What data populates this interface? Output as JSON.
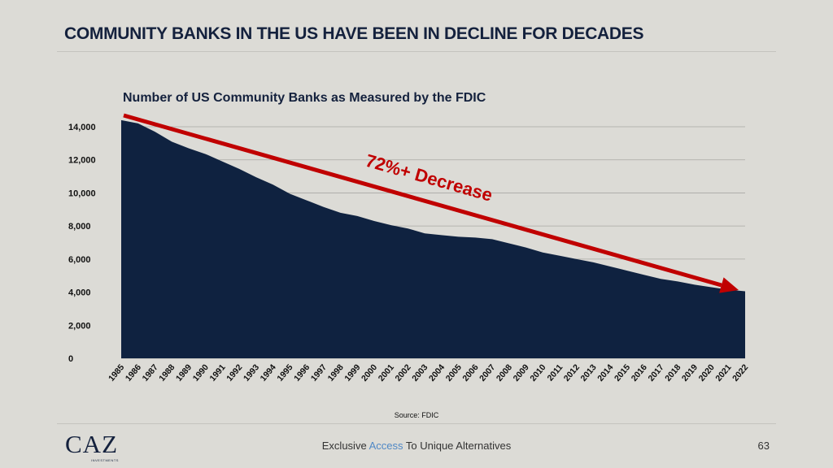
{
  "slide": {
    "title": "COMMUNITY BANKS IN THE US HAVE BEEN IN DECLINE FOR DECADES",
    "page_number": "63",
    "source": "Source: FDIC"
  },
  "footer": {
    "logo_text": "CAZ",
    "logo_subtext": "INVESTMENTS",
    "tagline_before": "Exclusive ",
    "tagline_accent": "Access",
    "tagline_after": " To Unique Alternatives"
  },
  "colors": {
    "background": "#dcdbd6",
    "area_fill": "#0f2240",
    "arrow": "#c00000",
    "title": "#14213d",
    "accent": "#4f88c6"
  },
  "chart_data": {
    "type": "area",
    "title": "Number of US Community Banks as Measured by the FDIC",
    "xlabel": "",
    "ylabel": "",
    "ylim": [
      0,
      14000
    ],
    "yticks": [
      0,
      2000,
      4000,
      6000,
      8000,
      10000,
      12000,
      14000
    ],
    "ytick_labels": [
      "0",
      "2,000",
      "4,000",
      "6,000",
      "8,000",
      "10,000",
      "12,000",
      "14,000"
    ],
    "grid": true,
    "categories": [
      "1985",
      "1986",
      "1987",
      "1988",
      "1989",
      "1990",
      "1991",
      "1992",
      "1993",
      "1994",
      "1995",
      "1996",
      "1997",
      "1998",
      "1999",
      "2000",
      "2001",
      "2002",
      "2003",
      "2004",
      "2005",
      "2006",
      "2007",
      "2008",
      "2009",
      "2010",
      "2011",
      "2012",
      "2013",
      "2014",
      "2015",
      "2016",
      "2017",
      "2018",
      "2019",
      "2020",
      "2021",
      "2022"
    ],
    "series": [
      {
        "values": [
          14400,
          14200,
          13700,
          13100,
          12700,
          12350,
          11900,
          11450,
          10950,
          10500,
          9950,
          9550,
          9150,
          8800,
          8600,
          8300,
          8050,
          7850,
          7550,
          7450,
          7350,
          7300,
          7200,
          6950,
          6700,
          6400,
          6200,
          6000,
          5800,
          5550,
          5300,
          5050,
          4800,
          4650,
          4450,
          4300,
          4150,
          4050
        ]
      }
    ],
    "annotations": [
      {
        "text": "72%+ Decrease"
      }
    ]
  }
}
